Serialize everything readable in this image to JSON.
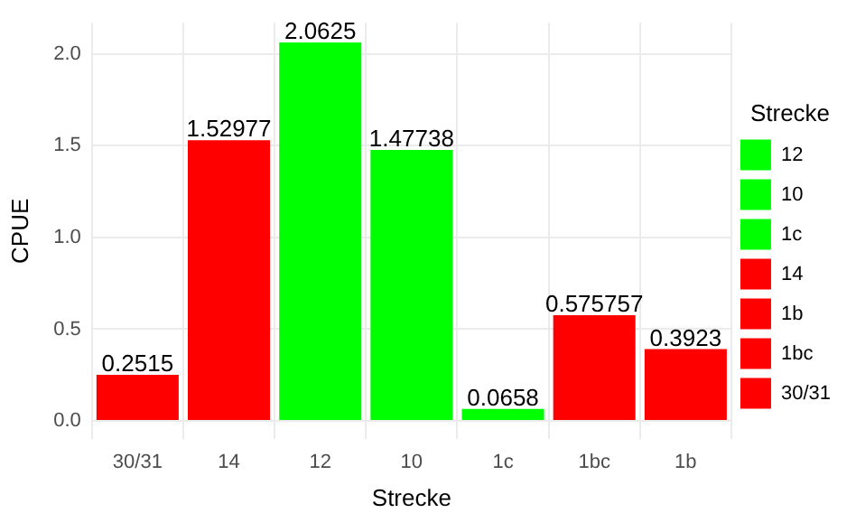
{
  "chart_data": {
    "type": "bar",
    "xlabel": "Strecke",
    "ylabel": "CPUE",
    "legend_title": "Strecke",
    "categories": [
      "30/31",
      "14",
      "12",
      "10",
      "1c",
      "1bc",
      "1b"
    ],
    "series": [
      {
        "name": "12",
        "color": "#00ff00",
        "values": [
          null,
          null,
          2.0625,
          null,
          null,
          null,
          null
        ]
      },
      {
        "name": "10",
        "color": "#00ff00",
        "values": [
          null,
          null,
          null,
          1.47738,
          null,
          null,
          null
        ]
      },
      {
        "name": "1c",
        "color": "#00ff00",
        "values": [
          null,
          null,
          null,
          null,
          0.0658,
          null,
          null
        ]
      },
      {
        "name": "14",
        "color": "#ff0000",
        "values": [
          null,
          1.52977,
          null,
          null,
          null,
          null,
          null
        ]
      },
      {
        "name": "1b",
        "color": "#ff0000",
        "values": [
          null,
          null,
          null,
          null,
          null,
          null,
          0.3923
        ]
      },
      {
        "name": "1bc",
        "color": "#ff0000",
        "values": [
          null,
          null,
          null,
          null,
          null,
          0.575757,
          null
        ]
      },
      {
        "name": "30/31",
        "color": "#ff0000",
        "values": [
          0.2515,
          null,
          null,
          null,
          null,
          null,
          null
        ]
      }
    ],
    "ylim": [
      -0.1,
      2.17
    ],
    "yticks": [
      {
        "value": 0,
        "label": "0.0"
      },
      {
        "value": 0.5,
        "label": "0.5"
      },
      {
        "value": 1,
        "label": "1.0"
      },
      {
        "value": 1.5,
        "label": "1.5"
      },
      {
        "value": 2,
        "label": "2.0"
      }
    ],
    "grid": true,
    "legend": "right",
    "data_labels": true
  }
}
